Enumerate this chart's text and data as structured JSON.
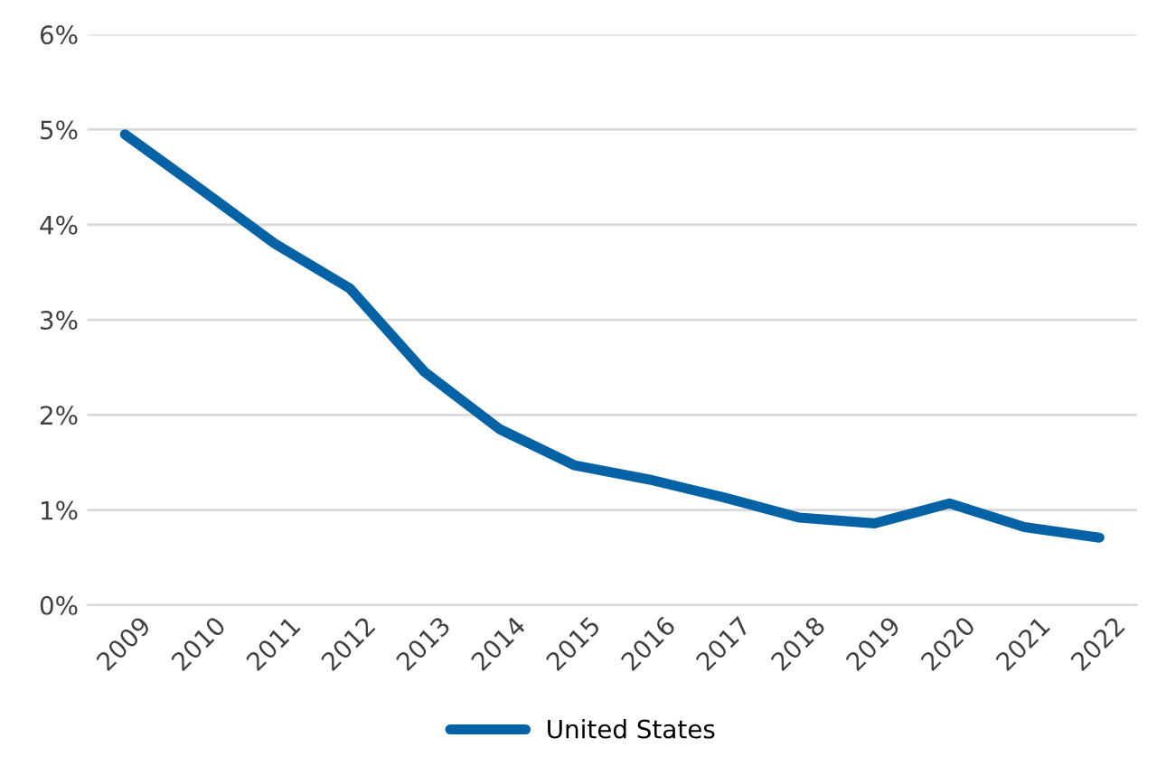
{
  "chart_data": {
    "type": "line",
    "categories": [
      "2009",
      "2010",
      "2011",
      "2012",
      "2013",
      "2014",
      "2015",
      "2016",
      "2017",
      "2018",
      "2019",
      "2020",
      "2021",
      "2022"
    ],
    "series": [
      {
        "name": "United States",
        "color": "#0563a5",
        "values": [
          4.95,
          4.38,
          3.8,
          3.33,
          2.45,
          1.85,
          1.47,
          1.32,
          1.13,
          0.92,
          0.86,
          1.07,
          0.82,
          0.71
        ]
      }
    ],
    "ylim": [
      0,
      6
    ],
    "yticks": [
      {
        "value": 0,
        "label": "0%"
      },
      {
        "value": 1,
        "label": "1%"
      },
      {
        "value": 2,
        "label": "2%"
      },
      {
        "value": 3,
        "label": "3%"
      },
      {
        "value": 4,
        "label": "4%"
      },
      {
        "value": 5,
        "label": "5%"
      },
      {
        "value": 6,
        "label": "6%"
      }
    ],
    "grid": "y",
    "legend": "bottom",
    "marker": "none",
    "line_style": "solid"
  }
}
